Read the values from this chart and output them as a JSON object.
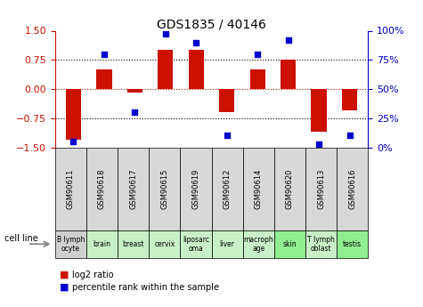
{
  "title": "GDS1835 / 40146",
  "samples": [
    "GSM90611",
    "GSM90618",
    "GSM90617",
    "GSM90615",
    "GSM90619",
    "GSM90612",
    "GSM90614",
    "GSM90620",
    "GSM90613",
    "GSM90616"
  ],
  "cell_lines": [
    "B lymph\nocyte",
    "brain",
    "breast",
    "cervix",
    "liposarc\noma",
    "liver",
    "macroph\nage",
    "skin",
    "T lymph\noblast",
    "testis"
  ],
  "cell_line_colors": [
    "#d0d0d0",
    "#c8f0c8",
    "#c8f0c8",
    "#c8f0c8",
    "#c8f0c8",
    "#c8f0c8",
    "#c8f0c8",
    "#90ee90",
    "#c8f0c8",
    "#90ee90"
  ],
  "log2_ratio": [
    -1.3,
    0.5,
    -0.08,
    1.0,
    1.0,
    -0.6,
    0.5,
    0.75,
    -1.1,
    -0.55
  ],
  "percentile_rank": [
    5,
    80,
    30,
    97,
    90,
    10,
    80,
    92,
    3,
    10
  ],
  "bar_color": "#cc1100",
  "dot_color": "#0000cc",
  "ylim": [
    -1.5,
    1.5
  ],
  "y2lim": [
    0,
    100
  ],
  "yticks": [
    -1.5,
    -0.75,
    0,
    0.75,
    1.5
  ],
  "y2ticks": [
    0,
    25,
    50,
    75,
    100
  ],
  "hlines": [
    -0.75,
    0,
    0.75
  ],
  "background_color": "#ffffff"
}
